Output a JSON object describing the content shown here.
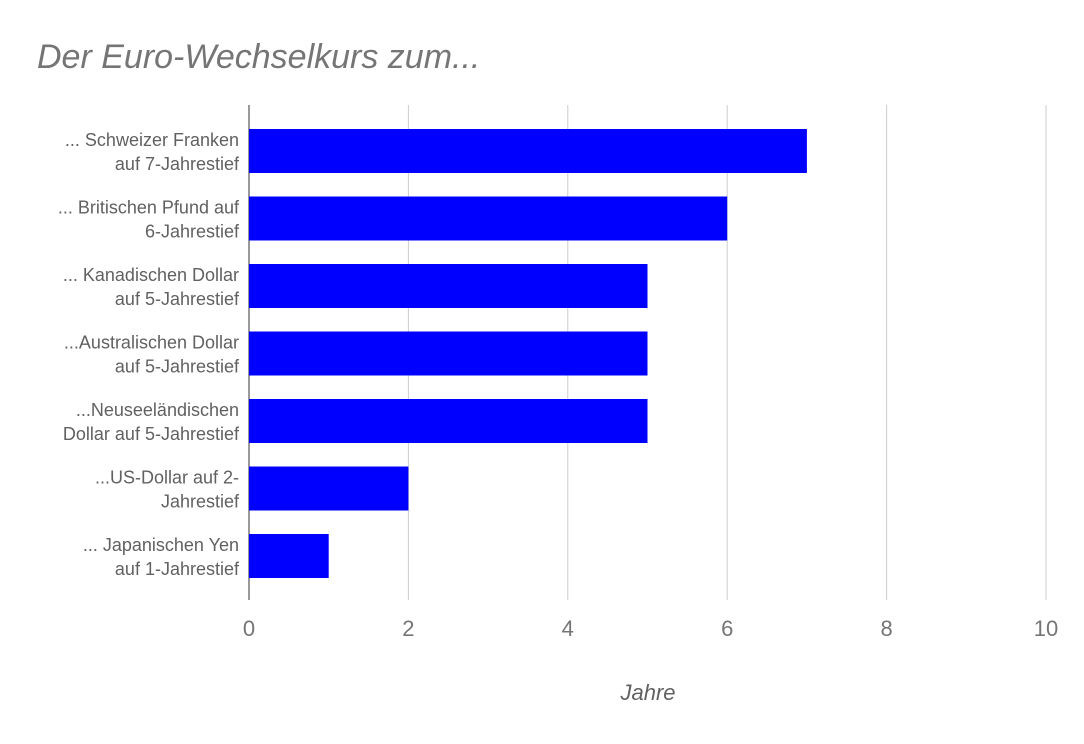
{
  "chart_data": {
    "type": "bar",
    "orientation": "horizontal",
    "title": "Der Euro-Wechselkurs zum...",
    "xlabel": "Jahre",
    "ylabel": "",
    "categories": [
      [
        "... Schweizer Franken",
        "auf 7-Jahrestief"
      ],
      [
        "... Britischen Pfund auf",
        "6-Jahrestief"
      ],
      [
        "... Kanadischen Dollar",
        "auf 5-Jahrestief"
      ],
      [
        "...Australischen Dollar",
        "auf 5-Jahrestief"
      ],
      [
        "...Neuseeländischen",
        "Dollar auf 5-Jahrestief"
      ],
      [
        "...US-Dollar auf 2-",
        "Jahrestief"
      ],
      [
        "... Japanischen Yen",
        "auf 1-Jahrestief"
      ]
    ],
    "values": [
      7,
      6,
      5,
      5,
      5,
      2,
      1
    ],
    "xlim": [
      0,
      10
    ],
    "xticks": [
      "0",
      "2",
      "4",
      "6",
      "8",
      "10"
    ],
    "bar_color": "#0000ff",
    "grid": true,
    "legend": "none"
  }
}
